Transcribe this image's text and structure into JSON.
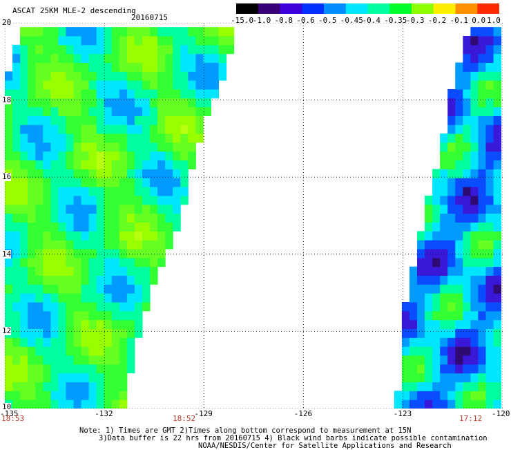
{
  "header": {
    "title": "ASCAT 25KM MLE-2 descending",
    "date": "20160715"
  },
  "colorbar": {
    "labels": [
      "-15.0",
      "-1.0",
      "-0.8",
      "-0.6",
      "-0.5",
      "-0.45",
      "-0.4",
      "-0.35",
      "-0.3",
      "-0.2",
      "-0.1",
      "0.0",
      "1.0"
    ],
    "stops": [
      "#000000",
      "#3a0078",
      "#3d00d9",
      "#0030ff",
      "#008cff",
      "#00e6ff",
      "#00ff9e",
      "#00ff2a",
      "#8cff00",
      "#ffee00",
      "#ff9000",
      "#ff2a00"
    ]
  },
  "map": {
    "lat_labels": [
      "20",
      "18",
      "16",
      "14",
      "12",
      "10"
    ],
    "lat_values": [
      20,
      18,
      16,
      14,
      12,
      10
    ],
    "lon_labels": [
      "-135",
      "-132",
      "-129",
      "-126",
      "-123",
      "-120"
    ],
    "lon_values": [
      -135,
      -132,
      -129,
      -126,
      -123,
      -120
    ],
    "lon_range": [
      -135,
      -120
    ],
    "lat_range": [
      10,
      20
    ],
    "swaths": [
      {
        "name": "west swath",
        "polygon": [
          [
            -134.5,
            20.0
          ],
          [
            -128.0,
            20.0
          ],
          [
            -128.2,
            19.2
          ],
          [
            -128.7,
            18.0
          ],
          [
            -129.1,
            17.0
          ],
          [
            -129.4,
            16.0
          ],
          [
            -129.7,
            15.0
          ],
          [
            -130.1,
            14.0
          ],
          [
            -130.6,
            13.0
          ],
          [
            -130.9,
            12.0
          ],
          [
            -131.2,
            11.0
          ],
          [
            -131.4,
            10.0
          ],
          [
            -135.0,
            10.0
          ],
          [
            -135.0,
            18.5
          ]
        ]
      },
      {
        "name": "east swath",
        "polygon": [
          [
            -121.0,
            20.0
          ],
          [
            -120.0,
            20.0
          ],
          [
            -120.0,
            10.0
          ],
          [
            -123.2,
            10.0
          ],
          [
            -123.1,
            11.0
          ],
          [
            -123.0,
            12.0
          ],
          [
            -122.9,
            13.0
          ],
          [
            -122.6,
            14.0
          ],
          [
            -122.4,
            15.0
          ],
          [
            -122.1,
            16.0
          ],
          [
            -121.8,
            17.0
          ],
          [
            -121.6,
            18.0
          ],
          [
            -121.3,
            19.0
          ]
        ]
      }
    ]
  },
  "times": {
    "left": "18:53",
    "middle": "18:52",
    "right": "17:12"
  },
  "notes": {
    "line1": "Note: 1) Times are GMT 2)Times along bottom correspond to measurement at 15N",
    "line2": "3)Data buffer is 22 hrs from 20160715 4) Black wind barbs indicate possible contamination",
    "line3": "NOAA/NESDIS/Center for Satellite Applications and Research"
  }
}
